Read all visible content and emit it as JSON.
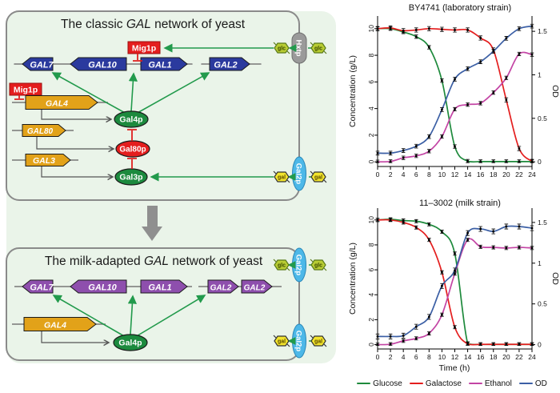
{
  "figure": {
    "background": "#ffffff",
    "panel_bg": "#eaf4e9",
    "panel_border": "#8a8a8a"
  },
  "diagram": {
    "classic": {
      "title_pre": "The classic ",
      "title_gene": "GAL",
      "title_post": " network of yeast",
      "mig1_top": "Mig1p",
      "mig1_left": "Mig1p",
      "genes_top": [
        "GAL7",
        "GAL10",
        "GAL1",
        "GAL2"
      ],
      "genes_left": [
        "GAL4",
        "GAL80",
        "GAL3"
      ],
      "proteins": [
        "Gal4p",
        "Gal80p",
        "Gal3p"
      ],
      "hxt_transporter": "Hxtp",
      "gal_transporter": "Gal2p",
      "glucose": "glc",
      "galactose": "gal"
    },
    "milk": {
      "title_pre": "The milk-adapted ",
      "title_gene": "GAL",
      "title_post": " network of yeast",
      "genes_top": [
        "GAL7",
        "GAL10",
        "GAL1",
        "GAL2",
        "GAL2"
      ],
      "gene_gal4": "GAL4",
      "protein": "Gal4p",
      "transporter_top": "Gal2p",
      "transporter_bottom": "Gal2p",
      "glucose": "glc",
      "galactose": "gal"
    },
    "colors": {
      "classic_gene": "#2b3a9e",
      "milk_gene": "#8e4fad",
      "activator_gene": "#e2a219",
      "repressor_red": "#e41e1e",
      "activator_protein_green": "#1c8a3e",
      "transporter_hxt_gray": "#9a9a9a",
      "transporter_gal2_cyan": "#4db8e8",
      "glucose_sugar": "#b8cc33",
      "galactose_sugar": "#f2e42c",
      "arrow_green": "#229a4c",
      "arrow_gray": "#8f8f8f"
    }
  },
  "chart_data": [
    {
      "type": "line",
      "title": "BY4741 (laboratory strain)",
      "xlabel": "",
      "ylabel_left": "Concentration (g/L)",
      "ylabel_right": "OD",
      "xlim": [
        0,
        24
      ],
      "xticks": [
        0,
        2,
        4,
        6,
        8,
        10,
        12,
        14,
        16,
        18,
        20,
        22,
        24
      ],
      "yticks_left": [
        0,
        2,
        4,
        6,
        8,
        10
      ],
      "yticks_right": [
        0,
        0.5,
        1,
        1.5
      ],
      "ylim_left": [
        0,
        10.3
      ],
      "ylim_right": [
        0,
        1.56
      ],
      "grid": false,
      "x": [
        0,
        2,
        4,
        6,
        8,
        10,
        12,
        14,
        16,
        18,
        20,
        22,
        24
      ],
      "series": [
        {
          "name": "Glucose",
          "color": "#1e8a3c",
          "axis": "left",
          "err": 0.13,
          "values": [
            10,
            10,
            9.75,
            9.4,
            8.6,
            6.1,
            1.15,
            0.05,
            0.02,
            0.02,
            0.02,
            0.02,
            0.02
          ]
        },
        {
          "name": "Galactose",
          "color": "#e41e1e",
          "axis": "left",
          "err": 0.16,
          "values": [
            10,
            10.05,
            9.85,
            9.9,
            10,
            9.95,
            9.9,
            9.9,
            9.3,
            8.4,
            4.65,
            1,
            0.03
          ]
        },
        {
          "name": "Ethanol",
          "color": "#c344a4",
          "axis": "left",
          "err": 0.13,
          "values": [
            0,
            0.03,
            0.3,
            0.45,
            0.8,
            1.9,
            3.95,
            4.3,
            4.4,
            5.2,
            6.3,
            8.1,
            8.05
          ]
        },
        {
          "name": "OD",
          "color": "#3b5fa5",
          "axis": "right",
          "err": 0.022,
          "values": [
            0.1,
            0.1,
            0.13,
            0.18,
            0.29,
            0.6,
            0.95,
            1.07,
            1.15,
            1.27,
            1.42,
            1.53,
            1.56
          ]
        }
      ]
    },
    {
      "type": "line",
      "title": "11–3002 (milk strain)",
      "xlabel": "Time (h)",
      "ylabel_left": "Concentration (g/L)",
      "ylabel_right": "OD",
      "xlim": [
        0,
        24
      ],
      "xticks": [
        0,
        2,
        4,
        6,
        8,
        10,
        12,
        14,
        16,
        18,
        20,
        22,
        24
      ],
      "yticks_left": [
        0,
        2,
        4,
        6,
        8,
        10
      ],
      "yticks_right": [
        0,
        0.5,
        1,
        1.5
      ],
      "ylim_left": [
        0,
        10.1
      ],
      "ylim_right": [
        0,
        1.45
      ],
      "grid": false,
      "x": [
        0,
        2,
        4,
        6,
        8,
        10,
        12,
        14,
        16,
        18,
        20,
        22,
        24
      ],
      "series": [
        {
          "name": "Glucose",
          "color": "#1e8a3c",
          "axis": "left",
          "err": 0.13,
          "values": [
            10,
            10.05,
            9.95,
            9.9,
            9.65,
            9.05,
            7.3,
            0.1,
            0.02,
            0.02,
            0.02,
            0.02,
            0.02
          ]
        },
        {
          "name": "Galactose",
          "color": "#e41e1e",
          "axis": "left",
          "err": 0.13,
          "values": [
            10,
            10,
            9.8,
            9.4,
            8.4,
            5.8,
            1.4,
            0.05,
            0.02,
            0.02,
            0.02,
            0.02,
            0.02
          ]
        },
        {
          "name": "Ethanol",
          "color": "#c344a4",
          "axis": "left",
          "err": 0.13,
          "values": [
            0,
            0.03,
            0.3,
            0.5,
            0.9,
            2.4,
            5.7,
            8.4,
            7.85,
            7.8,
            7.75,
            7.8,
            7.75
          ]
        },
        {
          "name": "OD",
          "color": "#3b5fa5",
          "axis": "right",
          "err": 0.03,
          "values": [
            0.1,
            0.1,
            0.11,
            0.22,
            0.34,
            0.72,
            0.91,
            1.37,
            1.42,
            1.39,
            1.45,
            1.45,
            1.43
          ]
        }
      ]
    }
  ]
}
